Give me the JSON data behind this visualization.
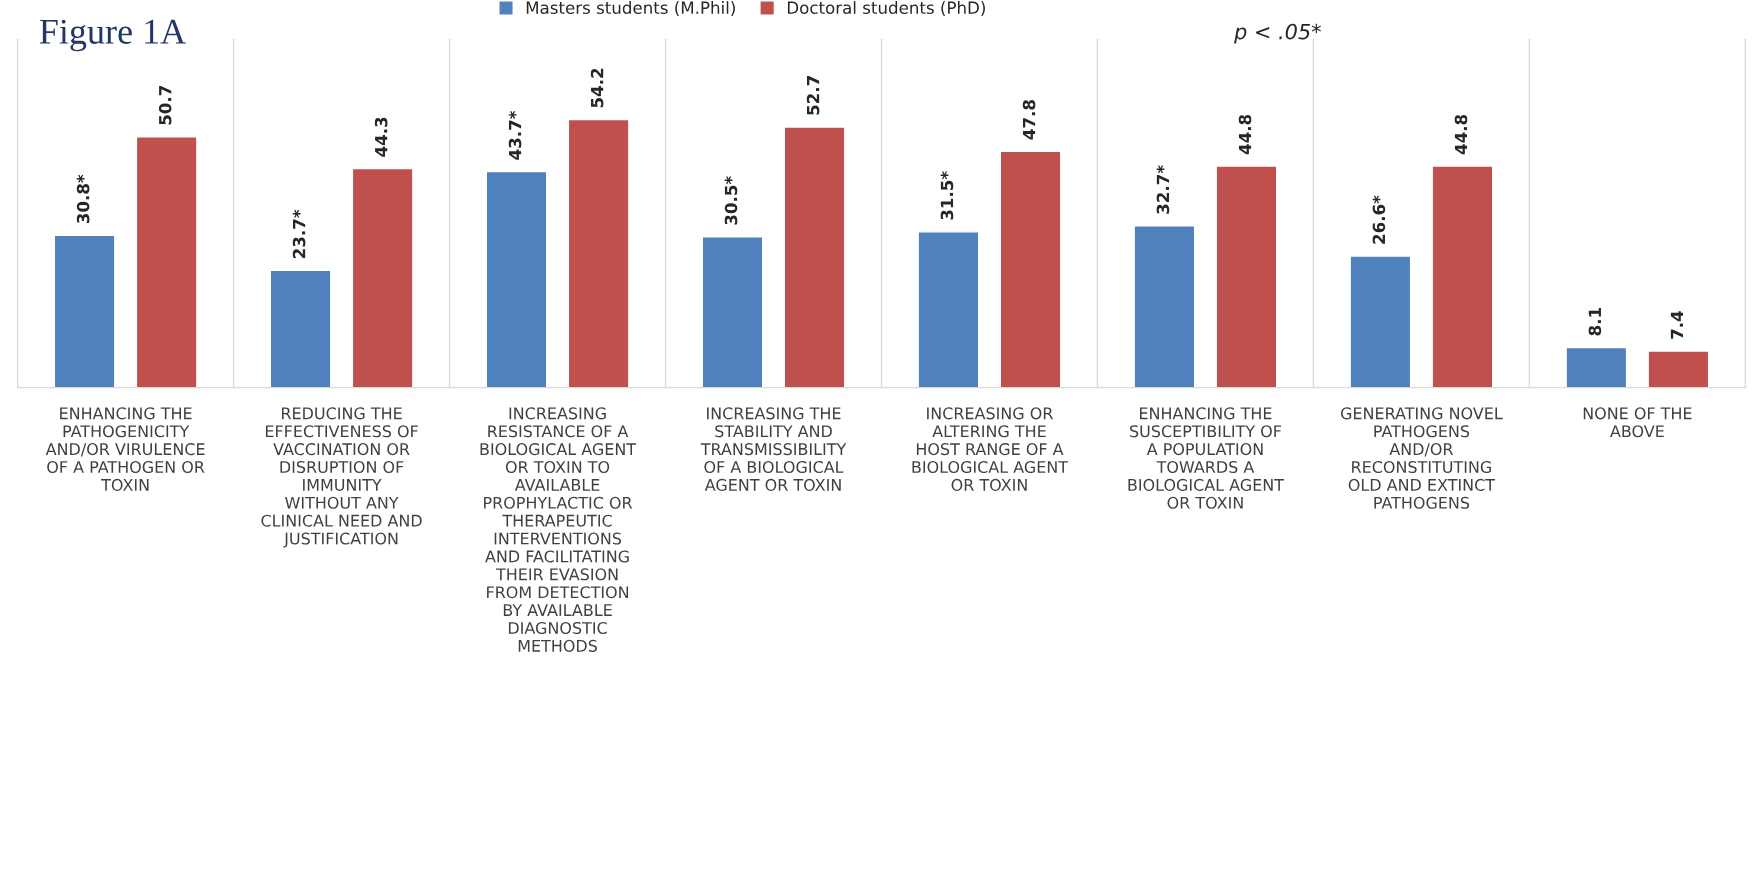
{
  "chart_data": {
    "type": "bar",
    "title": "Figure 1A",
    "categories": [
      "ENHANCING THE\nPATHOGENICITY\nAND/OR VIRULENCE\nOF A PATHOGEN OR\nTOXIN",
      "REDUCING THE\nEFFECTIVENESS OF\nVACCINATION OR\nDISRUPTION OF\nIMMUNITY\nWITHOUT ANY\nCLINICAL NEED AND\nJUSTIFICATION",
      "INCREASING\nRESISTANCE OF A\nBIOLOGICAL AGENT\nOR TOXIN TO\nAVAILABLE\nPROPHYLACTIC OR\nTHERAPEUTIC\nINTERVENTIONS\nAND FACILITATING\nTHEIR EVASION\nFROM DETECTION\nBY AVAILABLE\nDIAGNOSTIC\nMETHODS",
      "INCREASING THE\nSTABILITY AND\nTRANSMISSIBILITY\nOF A BIOLOGICAL\nAGENT OR TOXIN",
      "INCREASING OR\nALTERING THE\nHOST RANGE OF A\nBIOLOGICAL AGENT\nOR TOXIN",
      "ENHANCING THE\nSUSCEPTIBILITY OF\nA POPULATION\nTOWARDS A\nBIOLOGICAL AGENT\nOR TOXIN",
      "GENERATING NOVEL\nPATHOGENS\nAND/OR\nRECONSTITUTING\nOLD AND EXTINCT\nPATHOGENS",
      "NONE OF THE\nABOVE"
    ],
    "series": [
      {
        "name": "Masters students (M.Phil)",
        "color": "#4f81bd",
        "values": [
          30.8,
          23.7,
          43.7,
          30.5,
          31.5,
          32.7,
          26.6,
          8.1
        ],
        "value_labels": [
          "30.8*",
          "23.7*",
          "43.7*",
          "30.5*",
          "31.5*",
          "32.7*",
          "26.6*",
          "8.1"
        ]
      },
      {
        "name": "Doctoral students (PhD)",
        "color": "#c0504d",
        "values": [
          50.7,
          44.3,
          54.2,
          52.7,
          47.8,
          44.8,
          44.8,
          7.4
        ],
        "value_labels": [
          "50.7",
          "44.3",
          "54.2",
          "52.7",
          "47.8",
          "44.8",
          "44.8",
          "7.4"
        ]
      }
    ],
    "legend": "top",
    "annotations": [
      "p < .05*"
    ]
  }
}
